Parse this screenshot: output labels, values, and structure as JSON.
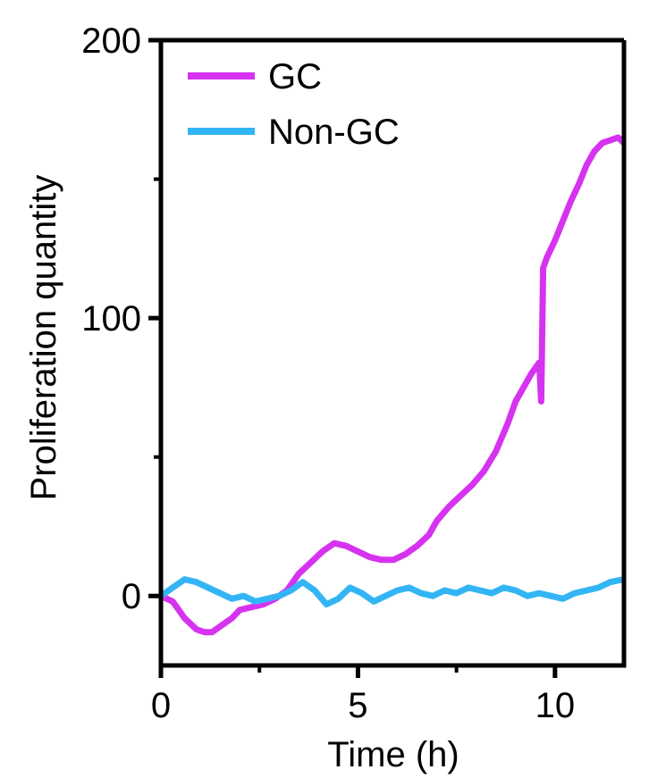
{
  "chart_data": {
    "type": "line",
    "title": "",
    "xlabel": "Time (h)",
    "ylabel": "Proliferation quantity",
    "xlim": [
      0,
      11.75
    ],
    "ylim": [
      -25,
      200
    ],
    "xticks": [
      {
        "value": 0,
        "label": "0"
      },
      {
        "value": 5,
        "label": "5"
      },
      {
        "value": 10,
        "label": "10"
      }
    ],
    "xminor": [
      2.5,
      7.5
    ],
    "yticks": [
      {
        "value": 0,
        "label": "0"
      },
      {
        "value": 100,
        "label": "100"
      },
      {
        "value": 200,
        "label": "200"
      }
    ],
    "yminor": [
      50,
      150
    ],
    "legend_position": "top-left",
    "series": [
      {
        "name": "GC",
        "color": "#d633f0",
        "x": [
          0,
          0.3,
          0.6,
          0.9,
          1.1,
          1.3,
          1.5,
          1.8,
          2.0,
          2.3,
          2.6,
          2.9,
          3.2,
          3.5,
          3.8,
          4.1,
          4.4,
          4.7,
          5.0,
          5.3,
          5.6,
          5.9,
          6.2,
          6.5,
          6.8,
          7.0,
          7.3,
          7.6,
          7.9,
          8.2,
          8.5,
          8.8,
          9.0,
          9.2,
          9.4,
          9.6,
          9.65,
          9.7,
          9.8,
          10.0,
          10.2,
          10.4,
          10.6,
          10.8,
          11.0,
          11.2,
          11.4,
          11.6,
          11.75
        ],
        "y": [
          0,
          -2,
          -8,
          -12,
          -13,
          -13,
          -11,
          -8,
          -5,
          -4,
          -3,
          -1,
          2,
          8,
          12,
          16,
          19,
          18,
          16,
          14,
          13,
          13,
          15,
          18,
          22,
          27,
          32,
          36,
          40,
          45,
          52,
          62,
          70,
          75,
          80,
          84,
          70,
          118,
          122,
          128,
          135,
          142,
          148,
          155,
          160,
          163,
          164,
          165,
          163
        ]
      },
      {
        "name": "Non-GC",
        "color": "#33b5f5",
        "x": [
          0,
          0.3,
          0.6,
          0.9,
          1.2,
          1.5,
          1.8,
          2.1,
          2.4,
          2.7,
          3.0,
          3.3,
          3.6,
          3.9,
          4.2,
          4.5,
          4.8,
          5.1,
          5.4,
          5.7,
          6.0,
          6.3,
          6.6,
          6.9,
          7.2,
          7.5,
          7.8,
          8.1,
          8.4,
          8.7,
          9.0,
          9.3,
          9.6,
          9.9,
          10.2,
          10.5,
          10.8,
          11.1,
          11.4,
          11.75
        ],
        "y": [
          0,
          3,
          6,
          5,
          3,
          1,
          -1,
          0,
          -2,
          -1,
          0,
          2,
          5,
          2,
          -3,
          -1,
          3,
          1,
          -2,
          0,
          2,
          3,
          1,
          0,
          2,
          1,
          3,
          2,
          1,
          3,
          2,
          0,
          1,
          0,
          -1,
          1,
          2,
          3,
          5,
          6
        ]
      }
    ]
  }
}
